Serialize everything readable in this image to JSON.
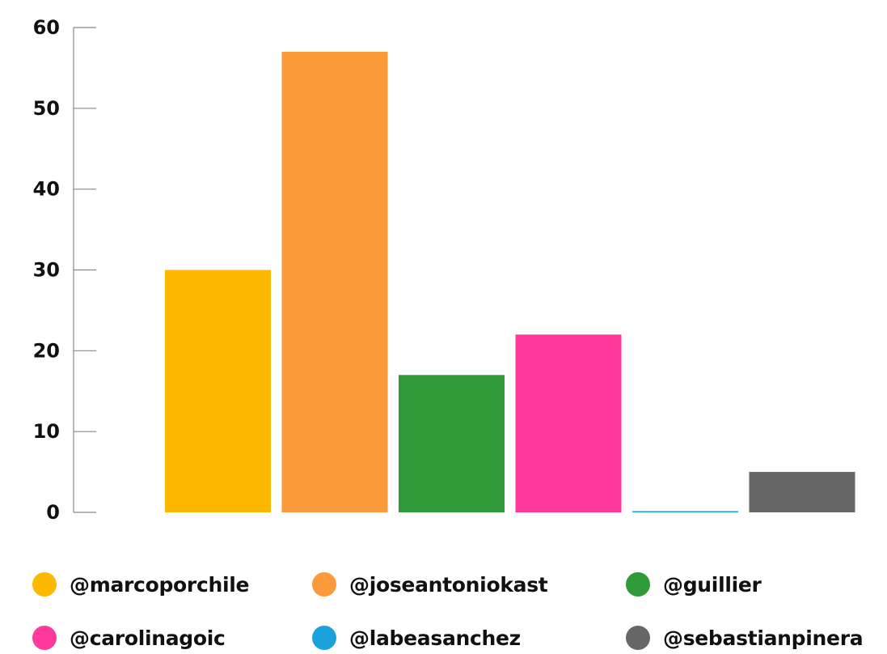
{
  "chart_data": {
    "type": "bar",
    "title": "",
    "xlabel": "",
    "ylabel": "",
    "ylim": [
      0,
      60
    ],
    "yticks": [
      0,
      10,
      20,
      30,
      40,
      50,
      60
    ],
    "grid": false,
    "legend_position": "bottom",
    "categories": [
      "@marcoporchile",
      "@joseantoniokast",
      "@guillier",
      "@carolinagoic",
      "@labeasanchez",
      "@sebastianpinera"
    ],
    "values": [
      30,
      57,
      17,
      22,
      0,
      5
    ],
    "colors": [
      "#FDB900",
      "#FB9A3A",
      "#2F9A38",
      "#FD3A9C",
      "#1AA3DB",
      "#666666"
    ]
  },
  "legend": {
    "items": [
      {
        "label": "@marcoporchile",
        "color": "#FDB900"
      },
      {
        "label": "@joseantoniokast",
        "color": "#FB9A3A"
      },
      {
        "label": "@guillier",
        "color": "#2F9A38"
      },
      {
        "label": "@carolinagoic",
        "color": "#FD3A9C"
      },
      {
        "label": "@labeasanchez",
        "color": "#1AA3DB"
      },
      {
        "label": "@sebastianpinera",
        "color": "#666666"
      }
    ]
  }
}
